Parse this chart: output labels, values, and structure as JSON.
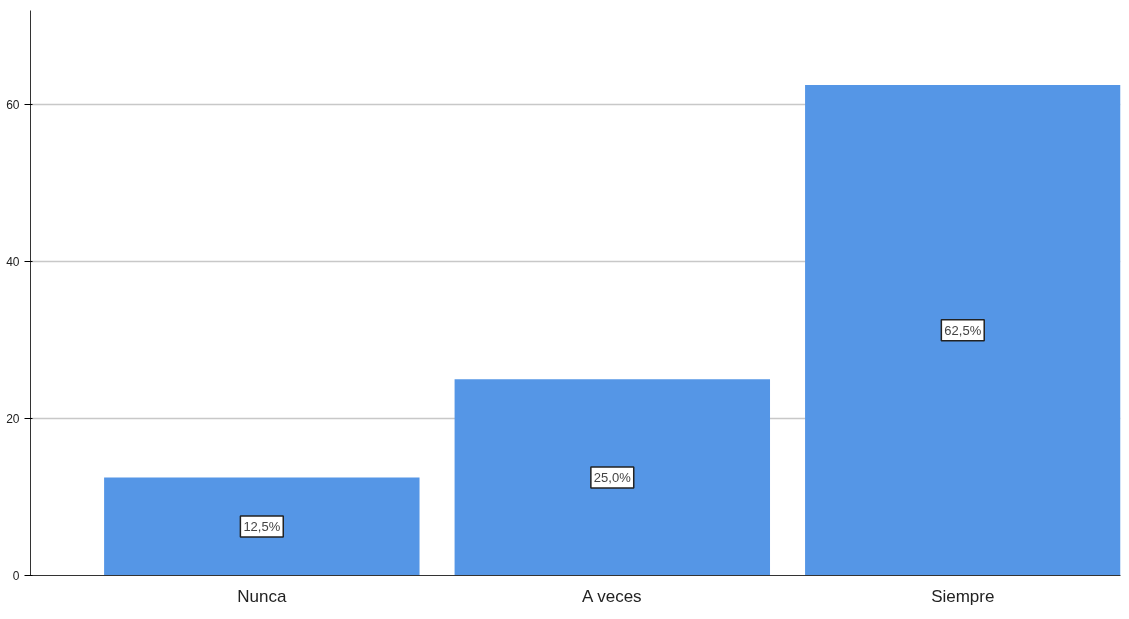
{
  "chart_data": {
    "type": "bar",
    "categories": [
      "Nunca",
      "A veces",
      "Siempre"
    ],
    "values": [
      12.5,
      25.0,
      62.5
    ],
    "value_labels": [
      "12,5%",
      "25,0%",
      "62,5%"
    ],
    "color": "#5596e6",
    "ylim": [
      0,
      72
    ],
    "yticks": [
      0,
      20,
      40,
      60
    ],
    "grid": "y"
  }
}
